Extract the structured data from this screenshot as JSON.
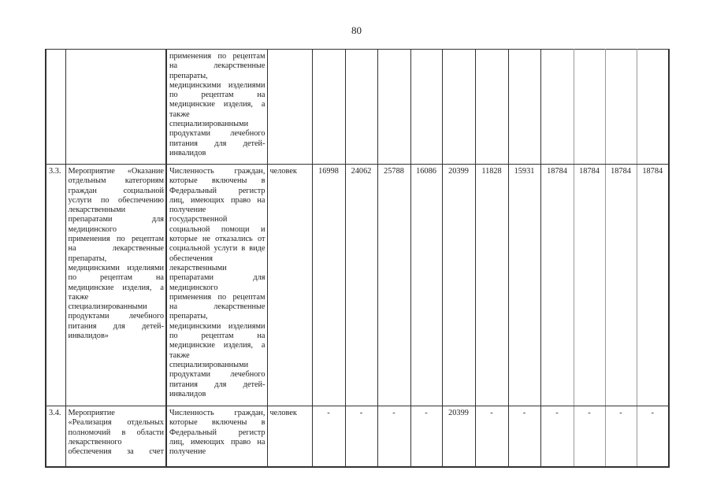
{
  "page_number": "80",
  "rows": [
    {
      "num": "",
      "event_lines": [],
      "indicator_lines": [
        "применения по рецептам",
        "на лекарственные",
        "препараты,",
        "медицинскими изделиями",
        "по рецептам на",
        "медицинские изделия, а",
        "также",
        "специализированными",
        "продуктами лечебного",
        "питания для детей-",
        "инвалидов"
      ],
      "unit": "",
      "values": [
        "",
        "",
        "",
        "",
        "",
        "",
        "",
        "",
        "",
        "",
        ""
      ]
    },
    {
      "num": "3.3.",
      "event_lines": [
        "Мероприятие «Оказание",
        "отдельным категориям",
        "граждан социальной",
        "услуги по обеспечению",
        "лекарственными",
        "препаратами для",
        "медицинского",
        "применения по рецептам",
        "на лекарственные",
        "препараты,",
        "медицинскими изделиями",
        "по рецептам на",
        "медицинские изделия, а",
        "также",
        "специализированными",
        "продуктами лечебного",
        "питания для детей-",
        "инвалидов»"
      ],
      "indicator_lines": [
        "Численность граждан,",
        "которые включены в",
        "Федеральный регистр",
        "лиц, имеющих право на",
        "получение",
        "государственной",
        "социальной помощи и",
        "которые не отказались от",
        "социальной услуги в виде",
        "обеспечения",
        "лекарственными",
        "препаратами для",
        "медицинского",
        "применения по рецептам",
        "на лекарственные",
        "препараты,",
        "медицинскими изделиями",
        "по рецептам на",
        "медицинские изделия, а",
        "также",
        "специализированными",
        "продуктами лечебного",
        "питания для детей-",
        "инвалидов"
      ],
      "unit": "человек",
      "values": [
        "16998",
        "24062",
        "25788",
        "16086",
        "20399",
        "11828",
        "15931",
        "18784",
        "18784",
        "18784",
        "18784"
      ]
    },
    {
      "num": "3.4.",
      "event_lines": [
        "Мероприятие",
        "«Реализация отдельных",
        "полномочий в области",
        "лекарственного",
        "обеспечения за счет"
      ],
      "indicator_lines": [
        "Численность граждан,",
        "которые включены в",
        "Федеральный регистр",
        "лиц, имеющих право на",
        "получение"
      ],
      "unit": "человек",
      "values": [
        "-",
        "-",
        "-",
        "-",
        "20399",
        "-",
        "-",
        "-",
        "-",
        "-",
        "-"
      ]
    }
  ]
}
